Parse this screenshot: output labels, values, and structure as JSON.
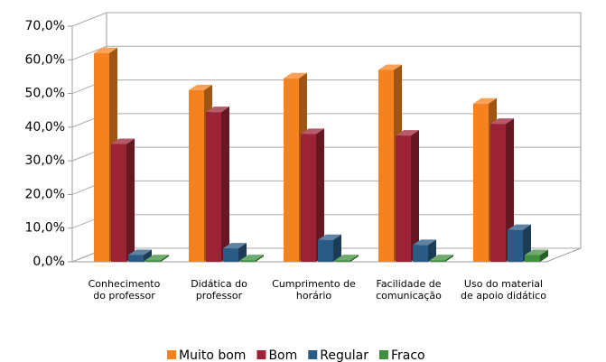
{
  "chart_data": {
    "type": "bar3d",
    "categories": [
      "Conhecimento do professor",
      "Didática do professor",
      "Cumprimento de horário",
      "Facilidade de comunicação",
      "Uso do material de apoio didático"
    ],
    "series": [
      {
        "name": "Muito bom",
        "color": "#f5821f",
        "values": [
          62,
          51,
          54.5,
          57,
          47
        ]
      },
      {
        "name": "Bom",
        "color": "#9b2335",
        "values": [
          35,
          44.5,
          38,
          37.5,
          41
        ]
      },
      {
        "name": "Regular",
        "color": "#2a5b84",
        "values": [
          2,
          4,
          6.5,
          5,
          9.5
        ]
      },
      {
        "name": "Fraco",
        "color": "#3f8f3e",
        "values": [
          0.5,
          0.5,
          0.5,
          0.5,
          2
        ]
      }
    ],
    "ylim": [
      0,
      70
    ],
    "yticks": [
      {
        "value": 0,
        "label": "0,0%"
      },
      {
        "value": 10,
        "label": "10,0%"
      },
      {
        "value": 20,
        "label": "20,0%"
      },
      {
        "value": 30,
        "label": "30,0%"
      },
      {
        "value": 40,
        "label": "40,0%"
      },
      {
        "value": 50,
        "label": "50,0%"
      },
      {
        "value": 60,
        "label": "60,0%"
      },
      {
        "value": 70,
        "label": "70,0%"
      }
    ],
    "grid": true,
    "legend": "bottom"
  }
}
